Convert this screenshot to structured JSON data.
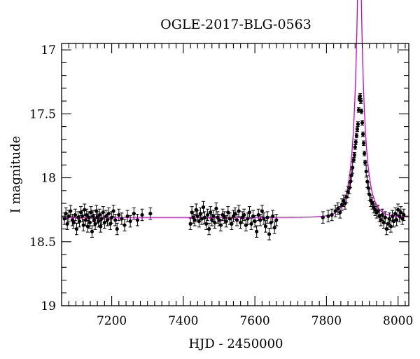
{
  "chart_data": {
    "type": "scatter",
    "title": "OGLE-2017-BLG-0563",
    "xlabel": "HJD - 2450000",
    "ylabel": "I magnitude",
    "xlim": [
      7060,
      8030
    ],
    "ylim": [
      19,
      16.95
    ],
    "y_inverted": true,
    "grid": false,
    "x_ticks": [
      7200,
      7400,
      7600,
      7800,
      8000
    ],
    "y_ticks": [
      17,
      17.5,
      18,
      18.5,
      19
    ],
    "x_tick_labels": [
      "7200",
      "7400",
      "7600",
      "7800",
      "8000"
    ],
    "y_tick_labels": [
      "17",
      "17.5",
      "18",
      "18.5",
      "19"
    ],
    "colors": {
      "points": "#000000",
      "model": "#cc00cc",
      "frame": "#000000"
    },
    "model": {
      "name": "",
      "t0": 7892,
      "u0": 0.087,
      "tE": 28,
      "baseline": 18.31
    },
    "series": [
      {
        "kind": "observed",
        "x": [
          7068,
          7072,
          7076,
          7080,
          7085,
          7090,
          7094,
          7098,
          7102,
          7106,
          7110,
          7114,
          7118,
          7121,
          7124,
          7127,
          7130,
          7133,
          7136,
          7139,
          7142,
          7145,
          7148,
          7151,
          7154,
          7157,
          7160,
          7163,
          7166,
          7169,
          7172,
          7176,
          7180,
          7184,
          7188,
          7192,
          7196,
          7200,
          7205,
          7210,
          7215,
          7220,
          7228,
          7236,
          7244,
          7252,
          7262,
          7272,
          7285,
          7308,
          7420,
          7424,
          7428,
          7432,
          7436,
          7440,
          7444,
          7448,
          7452,
          7456,
          7460,
          7464,
          7468,
          7472,
          7476,
          7480,
          7484,
          7488,
          7492,
          7496,
          7500,
          7505,
          7510,
          7515,
          7520,
          7525,
          7530,
          7535,
          7540,
          7545,
          7550,
          7555,
          7560,
          7565,
          7570,
          7575,
          7580,
          7585,
          7590,
          7595,
          7600,
          7605,
          7610,
          7615,
          7620,
          7625,
          7630,
          7635,
          7640,
          7645,
          7650,
          7655,
          7660,
          7790,
          7805,
          7815,
          7825,
          7832,
          7838,
          7843,
          7848,
          7852,
          7856,
          7860,
          7864,
          7867,
          7870,
          7873,
          7876,
          7878,
          7880,
          7882,
          7884,
          7886,
          7888,
          7890,
          7892,
          7894,
          7896,
          7898,
          7900,
          7902,
          7904,
          7906,
          7908,
          7911,
          7914,
          7917,
          7920,
          7924,
          7928,
          7932,
          7936,
          7940,
          7944,
          7948,
          7952,
          7956,
          7960,
          7964,
          7968,
          7972,
          7976,
          7980,
          7984,
          7988,
          7992,
          7996,
          8000,
          8004,
          8008,
          8012,
          8016
        ],
        "y": [
          18.32,
          18.28,
          18.36,
          18.3,
          18.26,
          18.33,
          18.35,
          18.29,
          18.4,
          18.31,
          18.34,
          18.27,
          18.3,
          18.37,
          18.25,
          18.33,
          18.29,
          18.38,
          18.31,
          18.35,
          18.27,
          18.42,
          18.3,
          18.33,
          18.36,
          18.26,
          18.31,
          18.34,
          18.29,
          18.38,
          18.32,
          18.27,
          18.35,
          18.3,
          18.33,
          18.28,
          18.36,
          18.31,
          18.26,
          18.33,
          18.4,
          18.29,
          18.32,
          18.37,
          18.3,
          18.34,
          18.28,
          18.33,
          18.29,
          18.28,
          18.36,
          18.27,
          18.31,
          18.33,
          18.25,
          18.3,
          18.34,
          18.28,
          18.32,
          18.23,
          18.31,
          18.36,
          18.29,
          18.4,
          18.27,
          18.33,
          18.3,
          18.35,
          18.24,
          18.31,
          18.33,
          18.37,
          18.29,
          18.31,
          18.34,
          18.27,
          18.32,
          18.36,
          18.3,
          18.28,
          18.33,
          18.26,
          18.35,
          18.31,
          18.29,
          18.37,
          18.32,
          18.27,
          18.36,
          18.3,
          18.34,
          18.42,
          18.29,
          18.33,
          18.26,
          18.32,
          18.38,
          18.31,
          18.44,
          18.35,
          18.3,
          18.39,
          18.33,
          18.31,
          18.3,
          18.29,
          18.26,
          18.24,
          18.27,
          18.21,
          18.18,
          18.2,
          18.15,
          18.11,
          18.08,
          18.03,
          17.98,
          17.92,
          17.86,
          17.82,
          17.76,
          17.72,
          17.67,
          17.62,
          17.58,
          17.47,
          17.38,
          17.36,
          17.4,
          17.48,
          17.57,
          17.66,
          17.73,
          17.81,
          17.88,
          17.95,
          18.03,
          18.08,
          18.13,
          18.18,
          18.2,
          18.23,
          18.25,
          18.27,
          18.26,
          18.3,
          18.33,
          18.29,
          18.35,
          18.31,
          18.4,
          18.36,
          18.32,
          18.38,
          18.3,
          18.34,
          18.28,
          18.33,
          18.25,
          18.3,
          18.27,
          18.32,
          18.29
        ]
      }
    ]
  }
}
